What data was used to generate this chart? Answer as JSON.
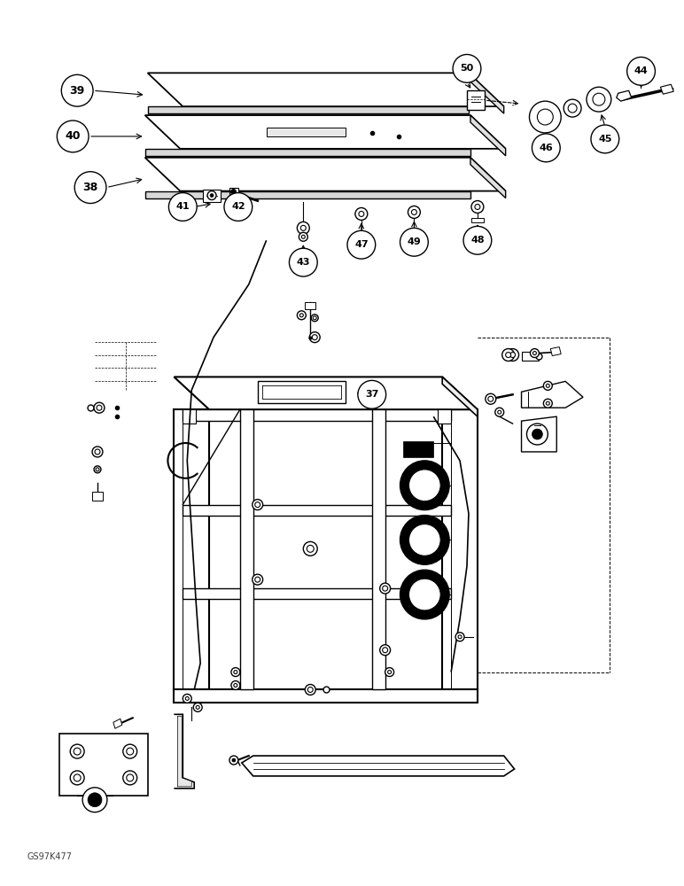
{
  "figure_width": 7.72,
  "figure_height": 10.0,
  "dpi": 100,
  "background_color": "#ffffff",
  "watermark_text": "GS97K477",
  "line_color": "#000000"
}
